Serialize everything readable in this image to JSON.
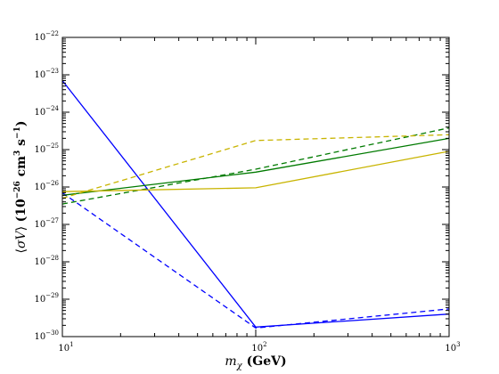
{
  "chart_data": {
    "type": "line",
    "title": "",
    "xlabel": "m_χ (GeV)",
    "ylabel": "⟨σV⟩ (10^−26 cm^3 s^−1)",
    "x_scale": "log",
    "y_scale": "log",
    "xlim": [
      10,
      1000
    ],
    "ylim": [
      1e-30,
      1e-22
    ],
    "x_ticks": [
      {
        "value": 10,
        "base": "10",
        "exp": "1"
      },
      {
        "value": 100,
        "base": "10",
        "exp": "2"
      },
      {
        "value": 1000,
        "base": "10",
        "exp": "3"
      }
    ],
    "y_ticks": [
      {
        "value": 1e-30,
        "base": "10",
        "exp": "−30"
      },
      {
        "value": 1e-29,
        "base": "10",
        "exp": "−29"
      },
      {
        "value": 1e-28,
        "base": "10",
        "exp": "−28"
      },
      {
        "value": 1e-27,
        "base": "10",
        "exp": "−27"
      },
      {
        "value": 1e-26,
        "base": "10",
        "exp": "−26"
      },
      {
        "value": 1e-25,
        "base": "10",
        "exp": "−25"
      },
      {
        "value": 1e-24,
        "base": "10",
        "exp": "−24"
      },
      {
        "value": 1e-23,
        "base": "10",
        "exp": "−23"
      },
      {
        "value": 1e-22,
        "base": "10",
        "exp": "−22"
      }
    ],
    "grid": false,
    "series": [
      {
        "color": "#0000ff",
        "dash": "solid",
        "x": [
          10,
          100,
          1000
        ],
        "y": [
          7e-24,
          1.8e-30,
          4e-30
        ]
      },
      {
        "color": "#0000ff",
        "dash": "dashed",
        "x": [
          10,
          100,
          1000
        ],
        "y": [
          7e-27,
          1.7e-30,
          5.5e-30
        ]
      },
      {
        "color": "#007a00",
        "dash": "solid",
        "x": [
          10,
          100,
          1000
        ],
        "y": [
          6e-27,
          2.5e-26,
          2e-25
        ]
      },
      {
        "color": "#007a00",
        "dash": "dashed",
        "x": [
          10,
          100,
          1000
        ],
        "y": [
          3.5e-27,
          3e-26,
          3.8e-25
        ]
      },
      {
        "color": "#c8b400",
        "dash": "solid",
        "x": [
          10,
          100,
          1000
        ],
        "y": [
          7.5e-27,
          9.5e-27,
          9e-26
        ]
      },
      {
        "color": "#c8b400",
        "dash": "dashed",
        "x": [
          10,
          100,
          1000
        ],
        "y": [
          5e-27,
          1.75e-25,
          2.5e-25
        ]
      }
    ]
  }
}
